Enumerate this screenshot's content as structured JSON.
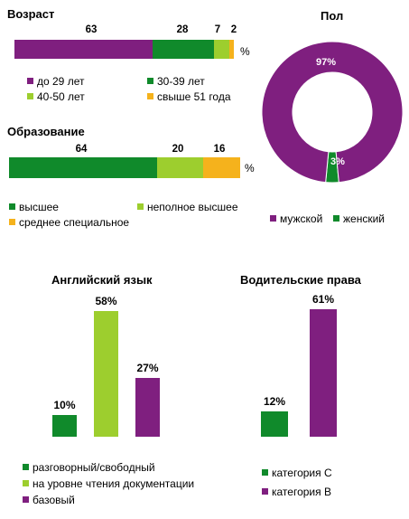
{
  "colors": {
    "purple": "#7f1f7f",
    "green": "#108a2b",
    "lime": "#9dce2e",
    "orange": "#f5b21c"
  },
  "chart_data": [
    {
      "type": "bar",
      "title": "Возраст",
      "unit": "%",
      "series": [
        {
          "name": "до 29 лет",
          "value": 63,
          "color": "#7f1f7f"
        },
        {
          "name": "30-39 лет",
          "value": 28,
          "color": "#108a2b"
        },
        {
          "name": "40-50 лет",
          "value": 7,
          "color": "#9dce2e"
        },
        {
          "name": "свыше 51 года",
          "value": 2,
          "color": "#f5b21c"
        }
      ]
    },
    {
      "type": "bar",
      "title": "Образование",
      "unit": "%",
      "series": [
        {
          "name": "высшее",
          "value": 64,
          "color": "#108a2b"
        },
        {
          "name": "неполное высшее",
          "value": 20,
          "color": "#9dce2e"
        },
        {
          "name": "среднее специальное",
          "value": 16,
          "color": "#f5b21c"
        }
      ]
    },
    {
      "type": "pie",
      "title": "Пол",
      "series": [
        {
          "name": "мужской",
          "value": 97,
          "label": "97%",
          "color": "#7f1f7f"
        },
        {
          "name": "женский",
          "value": 3,
          "label": "3%",
          "color": "#108a2b"
        }
      ]
    },
    {
      "type": "bar",
      "title": "Английский язык",
      "ylim": [
        0,
        61
      ],
      "series": [
        {
          "name": "разговорный/свободный",
          "value": 10,
          "label": "10%",
          "color": "#108a2b"
        },
        {
          "name": "на уровне чтения документации",
          "value": 58,
          "label": "58%",
          "color": "#9dce2e"
        },
        {
          "name": "базовый",
          "value": 27,
          "label": "27%",
          "color": "#7f1f7f"
        }
      ]
    },
    {
      "type": "bar",
      "title": "Водительские права",
      "ylim": [
        0,
        61
      ],
      "series": [
        {
          "name": "категория С",
          "value": 12,
          "label": "12%",
          "color": "#108a2b"
        },
        {
          "name": "категория В",
          "value": 61,
          "label": "61%",
          "color": "#7f1f7f"
        }
      ]
    }
  ]
}
